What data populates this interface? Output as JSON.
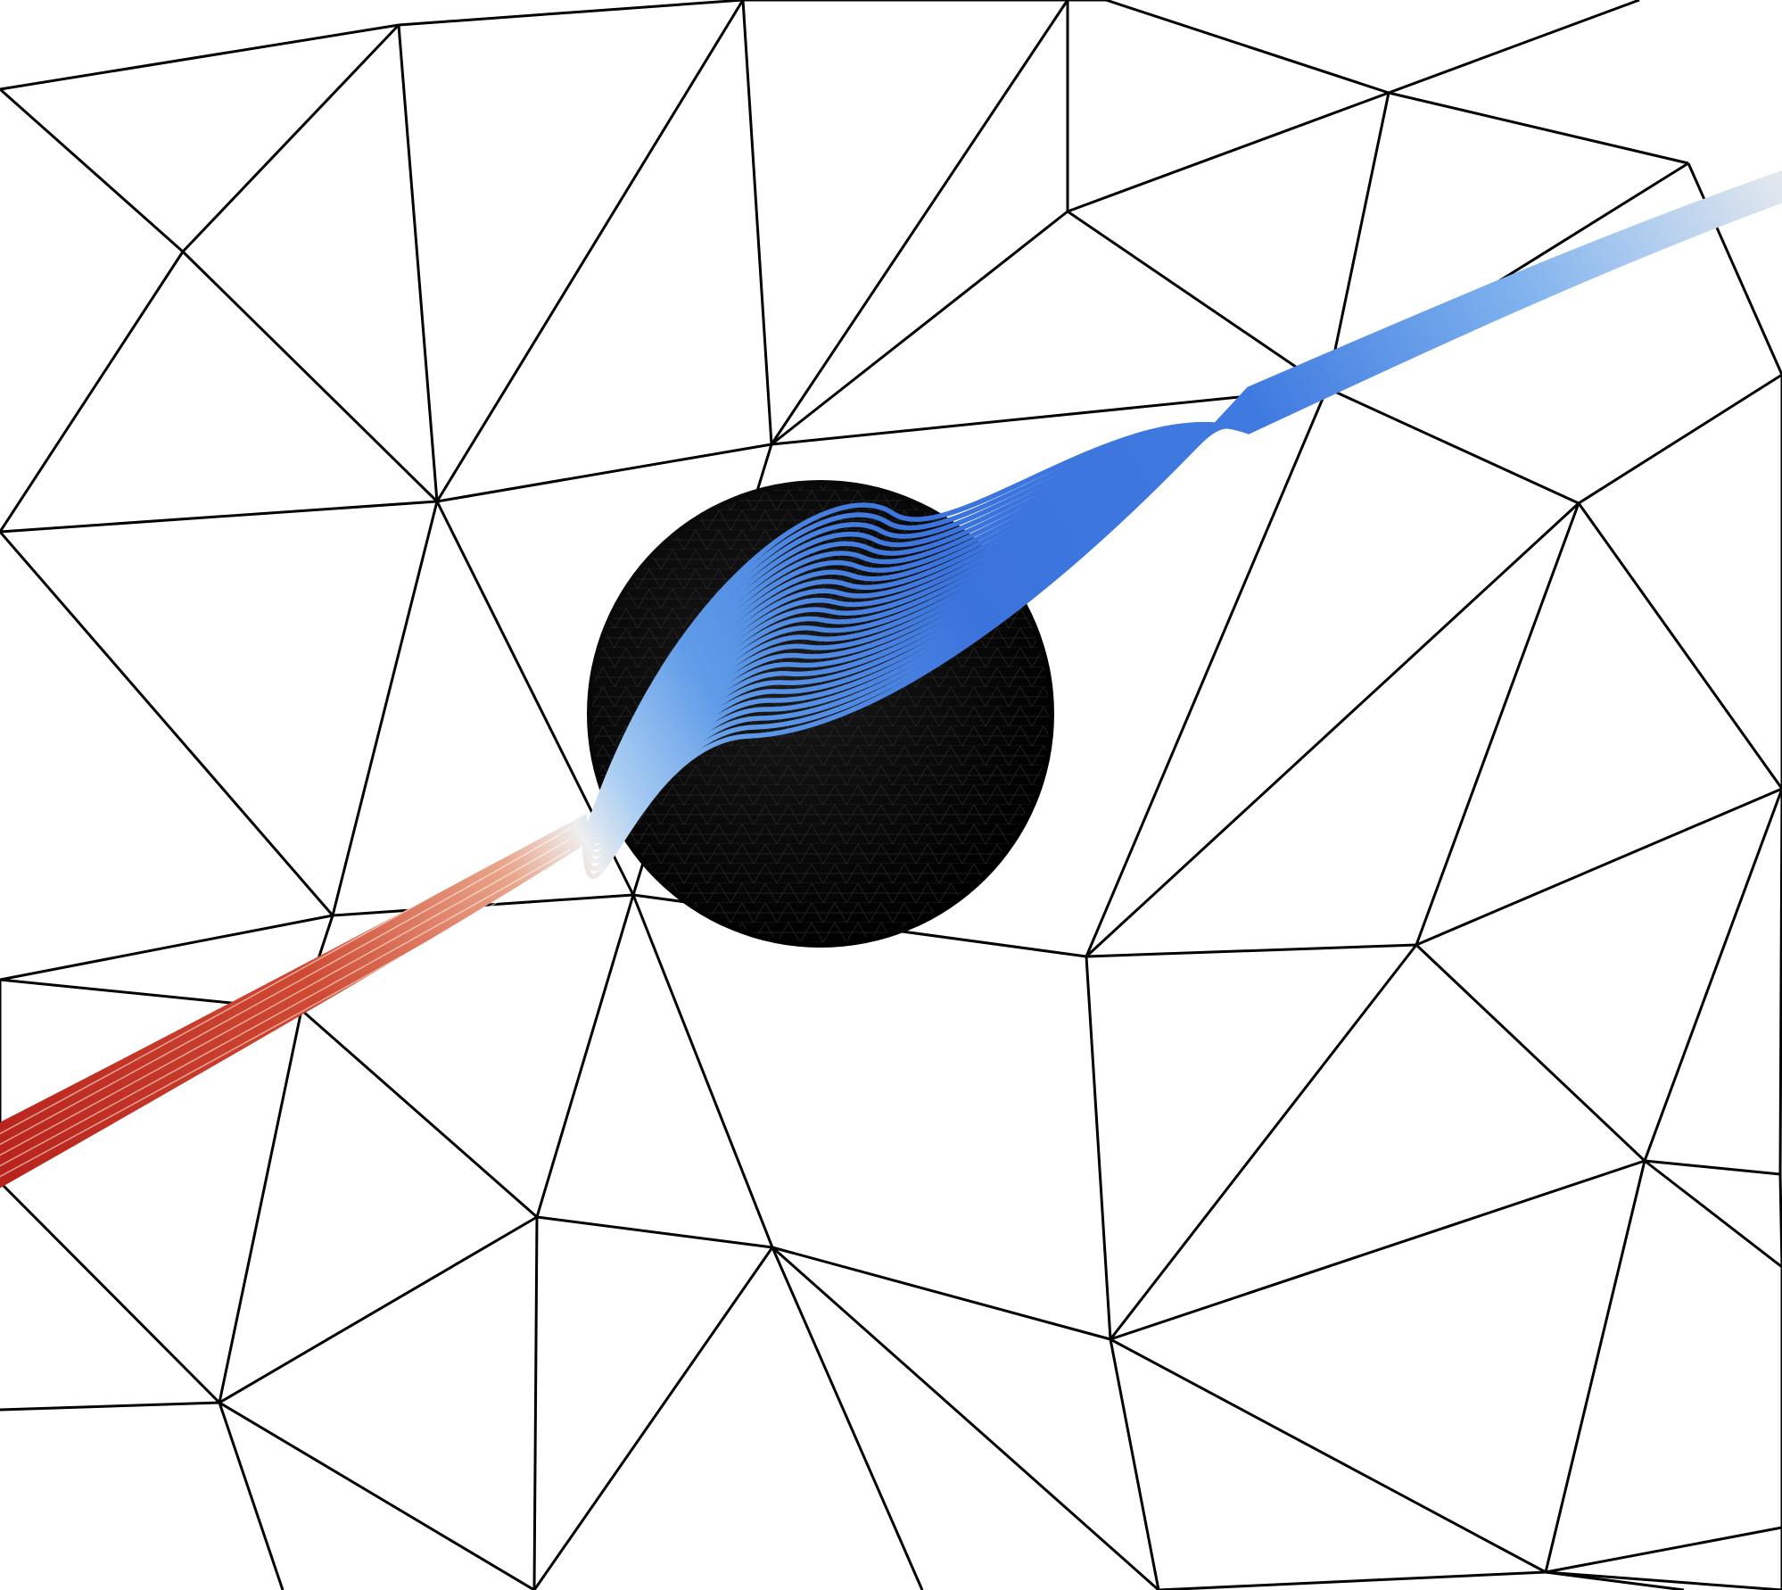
{
  "scene": {
    "type": "streamlines-around-sphere",
    "description_visible_text": null
  },
  "colors": {
    "background": "#ffffff",
    "mesh_edges": "#000000",
    "sphere": "#060606",
    "upstream_hot": "#c0271d",
    "upstream_warm": "#e0734d",
    "transition": "#f3e6df",
    "downstream_blue": "#2d63d6",
    "downstream_light": "#8fbdf0",
    "far_field": "#dfe6ee"
  },
  "elements": {
    "mesh": "background-triangular-mesh",
    "sphere": "wireframe-sphere",
    "streamlines": "flow-streamlines"
  }
}
